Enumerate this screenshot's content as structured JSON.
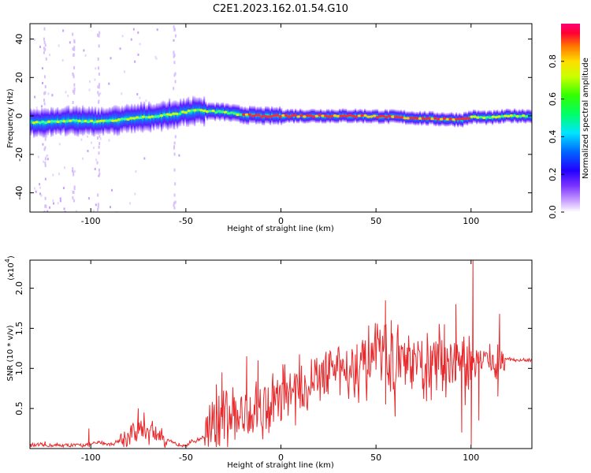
{
  "title": "C2E1.2023.162.01.54.G10",
  "chart_data": [
    {
      "type": "heatmap",
      "xlabel": "Height of straight line (km)",
      "ylabel": "Frequency (Hz)",
      "xlim": [
        -132,
        132
      ],
      "ylim": [
        -50,
        48
      ],
      "xticks": [
        -100,
        -50,
        0,
        50,
        100
      ],
      "yticks": [
        -40,
        -20,
        0,
        20,
        40
      ],
      "colorbar": {
        "label": "Normalized spectral amplitude",
        "range": [
          0,
          1
        ],
        "ticks": [
          "0.0",
          "0.2",
          "0.4",
          "0.6",
          "0.8"
        ]
      },
      "ridge": {
        "x": [
          -130,
          -120,
          -110,
          -100,
          -90,
          -80,
          -70,
          -60,
          -55,
          -50,
          -45,
          -40,
          -30,
          -20,
          -10,
          0,
          20,
          40,
          60,
          80,
          95,
          100,
          110,
          120,
          130
        ],
        "y": [
          -3.5,
          -3,
          -2.5,
          -3,
          -2.5,
          -1.5,
          -0.5,
          0.5,
          1,
          2,
          3,
          2.5,
          2,
          0.5,
          0,
          0,
          0,
          0,
          -0.5,
          -1.5,
          -2,
          -0.5,
          -1,
          0,
          0
        ]
      }
    },
    {
      "type": "line",
      "xlabel": "Height of straight line (km)",
      "ylabel": "SNR (10 * v/v)",
      "ylabel_exponent": "(x10",
      "ylabel_exponent_power": "4",
      "ylabel_exponent_close": ")",
      "xlim": [
        -132,
        132
      ],
      "ylim": [
        0,
        2.35
      ],
      "xticks": [
        -100,
        -50,
        0,
        50,
        100
      ],
      "yticks": [
        "0.5",
        "1.0",
        "1.5",
        "2.0"
      ],
      "series": [
        {
          "color": "#e8282b",
          "baseline": {
            "x": [
              -132,
              -120,
              -110,
              -100,
              -95,
              -90,
              -85,
              -80,
              -75,
              -70,
              -65,
              -60,
              -55,
              -50,
              -45,
              -40,
              -35,
              -30,
              -25,
              -20,
              -15,
              -10,
              -5,
              0,
              5,
              10,
              15,
              20,
              25,
              30,
              35,
              40,
              45,
              50,
              55,
              60,
              65,
              70,
              75,
              80,
              85,
              90,
              95,
              97,
              100,
              102,
              104,
              106,
              110,
              113,
              115,
              117,
              120,
              125,
              132
            ],
            "y": [
              0.04,
              0.04,
              0.04,
              0.05,
              0.08,
              0.05,
              0.1,
              0.15,
              0.25,
              0.22,
              0.18,
              0.1,
              0.05,
              0.05,
              0.1,
              0.15,
              0.22,
              0.35,
              0.38,
              0.42,
              0.5,
              0.55,
              0.58,
              0.62,
              0.7,
              0.75,
              0.8,
              0.9,
              0.95,
              1.0,
              1.02,
              1.05,
              1.05,
              1.1,
              1.15,
              1.1,
              1.05,
              1.02,
              1.0,
              1.05,
              1.1,
              1.12,
              1.08,
              0.95,
              1.1,
              1.1,
              1.1,
              1.12,
              1.12,
              1.05,
              1.1,
              1.12,
              1.12,
              1.1,
              1.1
            ]
          },
          "spikes": [
            {
              "x": -124,
              "y": 0.09
            },
            {
              "x": -101,
              "y": 0.25
            },
            {
              "x": -75,
              "y": 0.5
            },
            {
              "x": -72,
              "y": 0.45
            },
            {
              "x": -34,
              "y": 0.8
            },
            {
              "x": -31,
              "y": 0.95
            },
            {
              "x": -18,
              "y": 1.15
            },
            {
              "x": -12,
              "y": 1.1
            },
            {
              "x": 1,
              "y": 1.05
            },
            {
              "x": 40,
              "y": 1.3
            },
            {
              "x": 55,
              "y": 1.85
            },
            {
              "x": 58,
              "y": 1.6
            },
            {
              "x": 86,
              "y": 1.55
            },
            {
              "x": 92,
              "y": 1.8
            },
            {
              "x": 101,
              "y": 2.35
            },
            {
              "x": 115,
              "y": 1.68
            }
          ],
          "dips": [
            {
              "x": 55,
              "y": 0.55
            },
            {
              "x": 60,
              "y": 0.4
            },
            {
              "x": 75,
              "y": 0.62
            },
            {
              "x": 95,
              "y": 0.2
            },
            {
              "x": 100,
              "y": 0.05
            },
            {
              "x": 104,
              "y": 0.35
            },
            {
              "x": 114,
              "y": 0.65
            }
          ]
        }
      ]
    }
  ]
}
